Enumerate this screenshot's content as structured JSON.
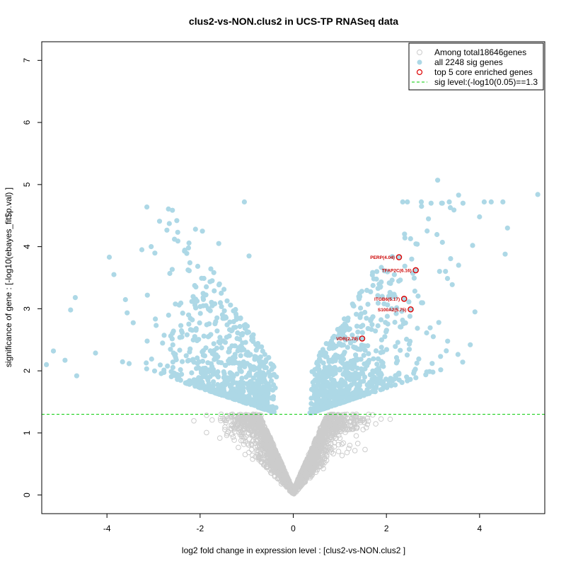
{
  "chart_data": {
    "type": "scatter",
    "title": "clus2-vs-NON.clus2 in UCS-TP RNASeq data",
    "xlabel": "log2 fold change in expression level : [clus2-vs-NON.clus2 ]",
    "ylabel": "significance of gene : [-log10(ebayes_fit$p.val) ]",
    "xlim": [
      -5.4,
      5.4
    ],
    "ylim": [
      -0.3,
      7.3
    ],
    "x_ticks": [
      -4,
      -2,
      0,
      2,
      4
    ],
    "y_ticks": [
      0,
      1,
      2,
      3,
      4,
      5,
      6,
      7
    ],
    "sig_level": 1.3,
    "colors": {
      "nonsig": "#cccccc",
      "sig": "#add8e6",
      "core": "#dd0000",
      "threshold": "#00cc00"
    },
    "legend": {
      "placement": "top-right",
      "entries": [
        "Among total18646genes",
        "all 2248 sig genes",
        "top 5 core enriched genes",
        "sig level:(-log10(0.05)==1.3"
      ]
    },
    "core_genes": [
      {
        "label": "PERP(4.04)",
        "x": 2.27,
        "y": 3.83
      },
      {
        "label": "TFAP2C(6.16)",
        "x": 2.63,
        "y": 3.62
      },
      {
        "label": "ITGB6(5.17)",
        "x": 2.38,
        "y": 3.16
      },
      {
        "label": "S100A2(5.75)",
        "x": 2.52,
        "y": 2.99
      },
      {
        "label": "VDR(2.79)",
        "x": 1.48,
        "y": 2.52
      }
    ],
    "highlighted_sig_points": [
      [
        -5.3,
        2.1
      ],
      [
        -5.15,
        2.32
      ],
      [
        -4.9,
        2.17
      ],
      [
        -4.78,
        2.98
      ],
      [
        -4.68,
        3.18
      ],
      [
        -4.65,
        1.92
      ],
      [
        -3.95,
        3.83
      ],
      [
        -3.85,
        3.55
      ],
      [
        -3.25,
        3.95
      ],
      [
        -3.05,
        4.0
      ],
      [
        -2.55,
        4.12
      ],
      [
        -2.5,
        4.42
      ],
      [
        -2.25,
        3.98
      ],
      [
        -2.1,
        4.28
      ],
      [
        -1.95,
        4.25
      ],
      [
        -1.6,
        4.05
      ],
      [
        -1.05,
        4.72
      ],
      [
        -0.95,
        3.85
      ],
      [
        3.1,
        5.07
      ],
      [
        3.55,
        4.83
      ],
      [
        5.25,
        4.84
      ],
      [
        4.1,
        4.72
      ],
      [
        4.25,
        4.72
      ],
      [
        4.5,
        4.72
      ],
      [
        2.35,
        4.72
      ],
      [
        2.45,
        4.72
      ],
      [
        2.75,
        4.72
      ],
      [
        3.2,
        4.7
      ],
      [
        3.35,
        4.72
      ],
      [
        3.45,
        4.59
      ],
      [
        4.6,
        4.3
      ],
      [
        4.0,
        4.48
      ],
      [
        3.85,
        4.02
      ],
      [
        4.55,
        3.88
      ],
      [
        3.9,
        2.95
      ],
      [
        3.8,
        2.42
      ],
      [
        3.55,
        3.7
      ]
    ]
  }
}
